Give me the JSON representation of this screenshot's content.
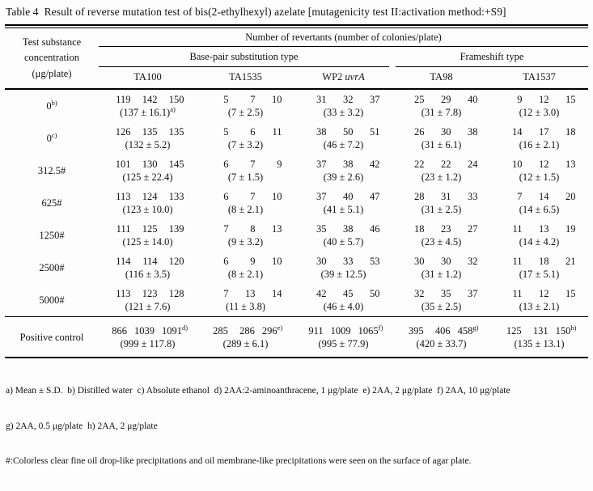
{
  "colors": {
    "background": "#fdfdfd",
    "text": "#121212",
    "rule": "#000000"
  },
  "title": "Table 4  Result of reverse mutation test of bis(2-ethylhexyl) azelate [mutagenicity test II:activation method:+S9]",
  "header": {
    "col1": [
      "Test substance",
      "concentration",
      "(μg/plate)"
    ],
    "revertants": "Number of revertants (number of colonies/plate)",
    "group_base_pair": "Base-pair substitution type",
    "group_frameshift": "Frameshift type",
    "strains": [
      {
        "base": "TA100",
        "italic": ""
      },
      {
        "base": "TA1535",
        "italic": ""
      },
      {
        "base": "WP2 ",
        "italic": "uvrA"
      },
      {
        "base": "TA98",
        "italic": ""
      },
      {
        "base": "TA1537",
        "italic": ""
      }
    ]
  },
  "table": {
    "rows": [
      {
        "label": "0",
        "label_sup": "b)",
        "separator_above": false,
        "cells": [
          {
            "v": [
              "119",
              "142",
              "150"
            ],
            "mean": "(137 ± 16.1)",
            "mean_sup": "a)"
          },
          {
            "v": [
              "5",
              "7",
              "10"
            ],
            "mean": "(7 ± 2.5)"
          },
          {
            "v": [
              "31",
              "32",
              "37"
            ],
            "mean": "(33 ± 3.2)"
          },
          {
            "v": [
              "25",
              "29",
              "40"
            ],
            "mean": "(31 ± 7.8)"
          },
          {
            "v": [
              "9",
              "12",
              "15"
            ],
            "mean": "(12 ± 3.0)"
          }
        ]
      },
      {
        "label": "0",
        "label_sup": "c)",
        "separator_above": false,
        "cells": [
          {
            "v": [
              "126",
              "135",
              "135"
            ],
            "mean": "(132 ± 5.2)"
          },
          {
            "v": [
              "5",
              "6",
              "11"
            ],
            "mean": "(7 ± 3.2)"
          },
          {
            "v": [
              "38",
              "50",
              "51"
            ],
            "mean": "(46 ± 7.2)"
          },
          {
            "v": [
              "26",
              "30",
              "38"
            ],
            "mean": "(31 ± 6.1)"
          },
          {
            "v": [
              "14",
              "17",
              "18"
            ],
            "mean": "(16 ± 2.1)"
          }
        ]
      },
      {
        "label": "312.5#",
        "separator_above": false,
        "cells": [
          {
            "v": [
              "101",
              "130",
              "145"
            ],
            "mean": "(125 ± 22.4)"
          },
          {
            "v": [
              "6",
              "7",
              "9"
            ],
            "mean": "(7 ± 1.5)"
          },
          {
            "v": [
              "37",
              "38",
              "42"
            ],
            "mean": "(39 ± 2.6)"
          },
          {
            "v": [
              "22",
              "22",
              "24"
            ],
            "mean": "(23 ± 1.2)"
          },
          {
            "v": [
              "10",
              "12",
              "13"
            ],
            "mean": "(12 ± 1.5)"
          }
        ]
      },
      {
        "label": "625#",
        "separator_above": false,
        "cells": [
          {
            "v": [
              "113",
              "124",
              "133"
            ],
            "mean": "(123 ± 10.0)"
          },
          {
            "v": [
              "6",
              "7",
              "10"
            ],
            "mean": "(8 ± 2.1)"
          },
          {
            "v": [
              "37",
              "40",
              "47"
            ],
            "mean": "(41 ± 5.1)"
          },
          {
            "v": [
              "28",
              "31",
              "33"
            ],
            "mean": "(31 ± 2.5)"
          },
          {
            "v": [
              "7",
              "14",
              "20"
            ],
            "mean": "(14 ± 6.5)"
          }
        ]
      },
      {
        "label": "1250#",
        "separator_above": false,
        "cells": [
          {
            "v": [
              "111",
              "125",
              "139"
            ],
            "mean": "(125 ± 14.0)"
          },
          {
            "v": [
              "7",
              "8",
              "13"
            ],
            "mean": "(9 ± 3.2)"
          },
          {
            "v": [
              "35",
              "38",
              "46"
            ],
            "mean": "(40 ± 5.7)"
          },
          {
            "v": [
              "18",
              "23",
              "27"
            ],
            "mean": "(23 ± 4.5)"
          },
          {
            "v": [
              "11",
              "13",
              "19"
            ],
            "mean": "(14 ± 4.2)"
          }
        ]
      },
      {
        "label": "2500#",
        "separator_above": false,
        "cells": [
          {
            "v": [
              "114",
              "114",
              "120"
            ],
            "mean": "(116 ± 3.5)"
          },
          {
            "v": [
              "6",
              "9",
              "10"
            ],
            "mean": "(8 ± 2.1)"
          },
          {
            "v": [
              "30",
              "33",
              "53"
            ],
            "mean": "(39 ± 12.5)"
          },
          {
            "v": [
              "30",
              "30",
              "32"
            ],
            "mean": "(31 ± 1.2)"
          },
          {
            "v": [
              "11",
              "18",
              "21"
            ],
            "mean": "(17 ± 5.1)"
          }
        ]
      },
      {
        "label": "5000#",
        "separator_above": false,
        "cells": [
          {
            "v": [
              "113",
              "123",
              "128"
            ],
            "mean": "(121 ± 7.6)"
          },
          {
            "v": [
              "7",
              "13",
              "14"
            ],
            "mean": "(11 ± 3.8)"
          },
          {
            "v": [
              "42",
              "45",
              "50"
            ],
            "mean": "(46 ± 4.0)"
          },
          {
            "v": [
              "32",
              "35",
              "37"
            ],
            "mean": "(35 ± 2.5)"
          },
          {
            "v": [
              "11",
              "12",
              "15"
            ],
            "mean": "(13 ± 2.1)"
          }
        ]
      },
      {
        "label": "Positive control",
        "separator_above": true,
        "cells": [
          {
            "v": [
              "866",
              "1039",
              "1091"
            ],
            "v_sup": "d)",
            "mean": "(999 ± 117.8)"
          },
          {
            "v": [
              "285",
              "286",
              "296"
            ],
            "v_sup": "e)",
            "mean": "(289 ± 6.1)"
          },
          {
            "v": [
              "911",
              "1009",
              "1065"
            ],
            "v_sup": "f)",
            "mean": "(995 ± 77.9)"
          },
          {
            "v": [
              "395",
              "406",
              "458"
            ],
            "v_sup": "g)",
            "mean": "(420 ± 33.7)"
          },
          {
            "v": [
              "125",
              "131",
              "150"
            ],
            "v_sup": "h)",
            "mean": "(135 ± 13.1)"
          }
        ]
      }
    ]
  },
  "footnotes": [
    "a) Mean ± S.D.  b) Distilled water  c) Absolute ethanol  d) 2AA:2-aminoanthracene, 1 μg/plate  e) 2AA, 2 μg/plate  f) 2AA, 10 μg/plate",
    "g) 2AA, 0.5 μg/plate  h) 2AA, 2 μg/plate",
    "#:Colorless clear fine oil drop-like precipitations and oil membrane-like precipitations were seen on the surface of agar plate."
  ]
}
